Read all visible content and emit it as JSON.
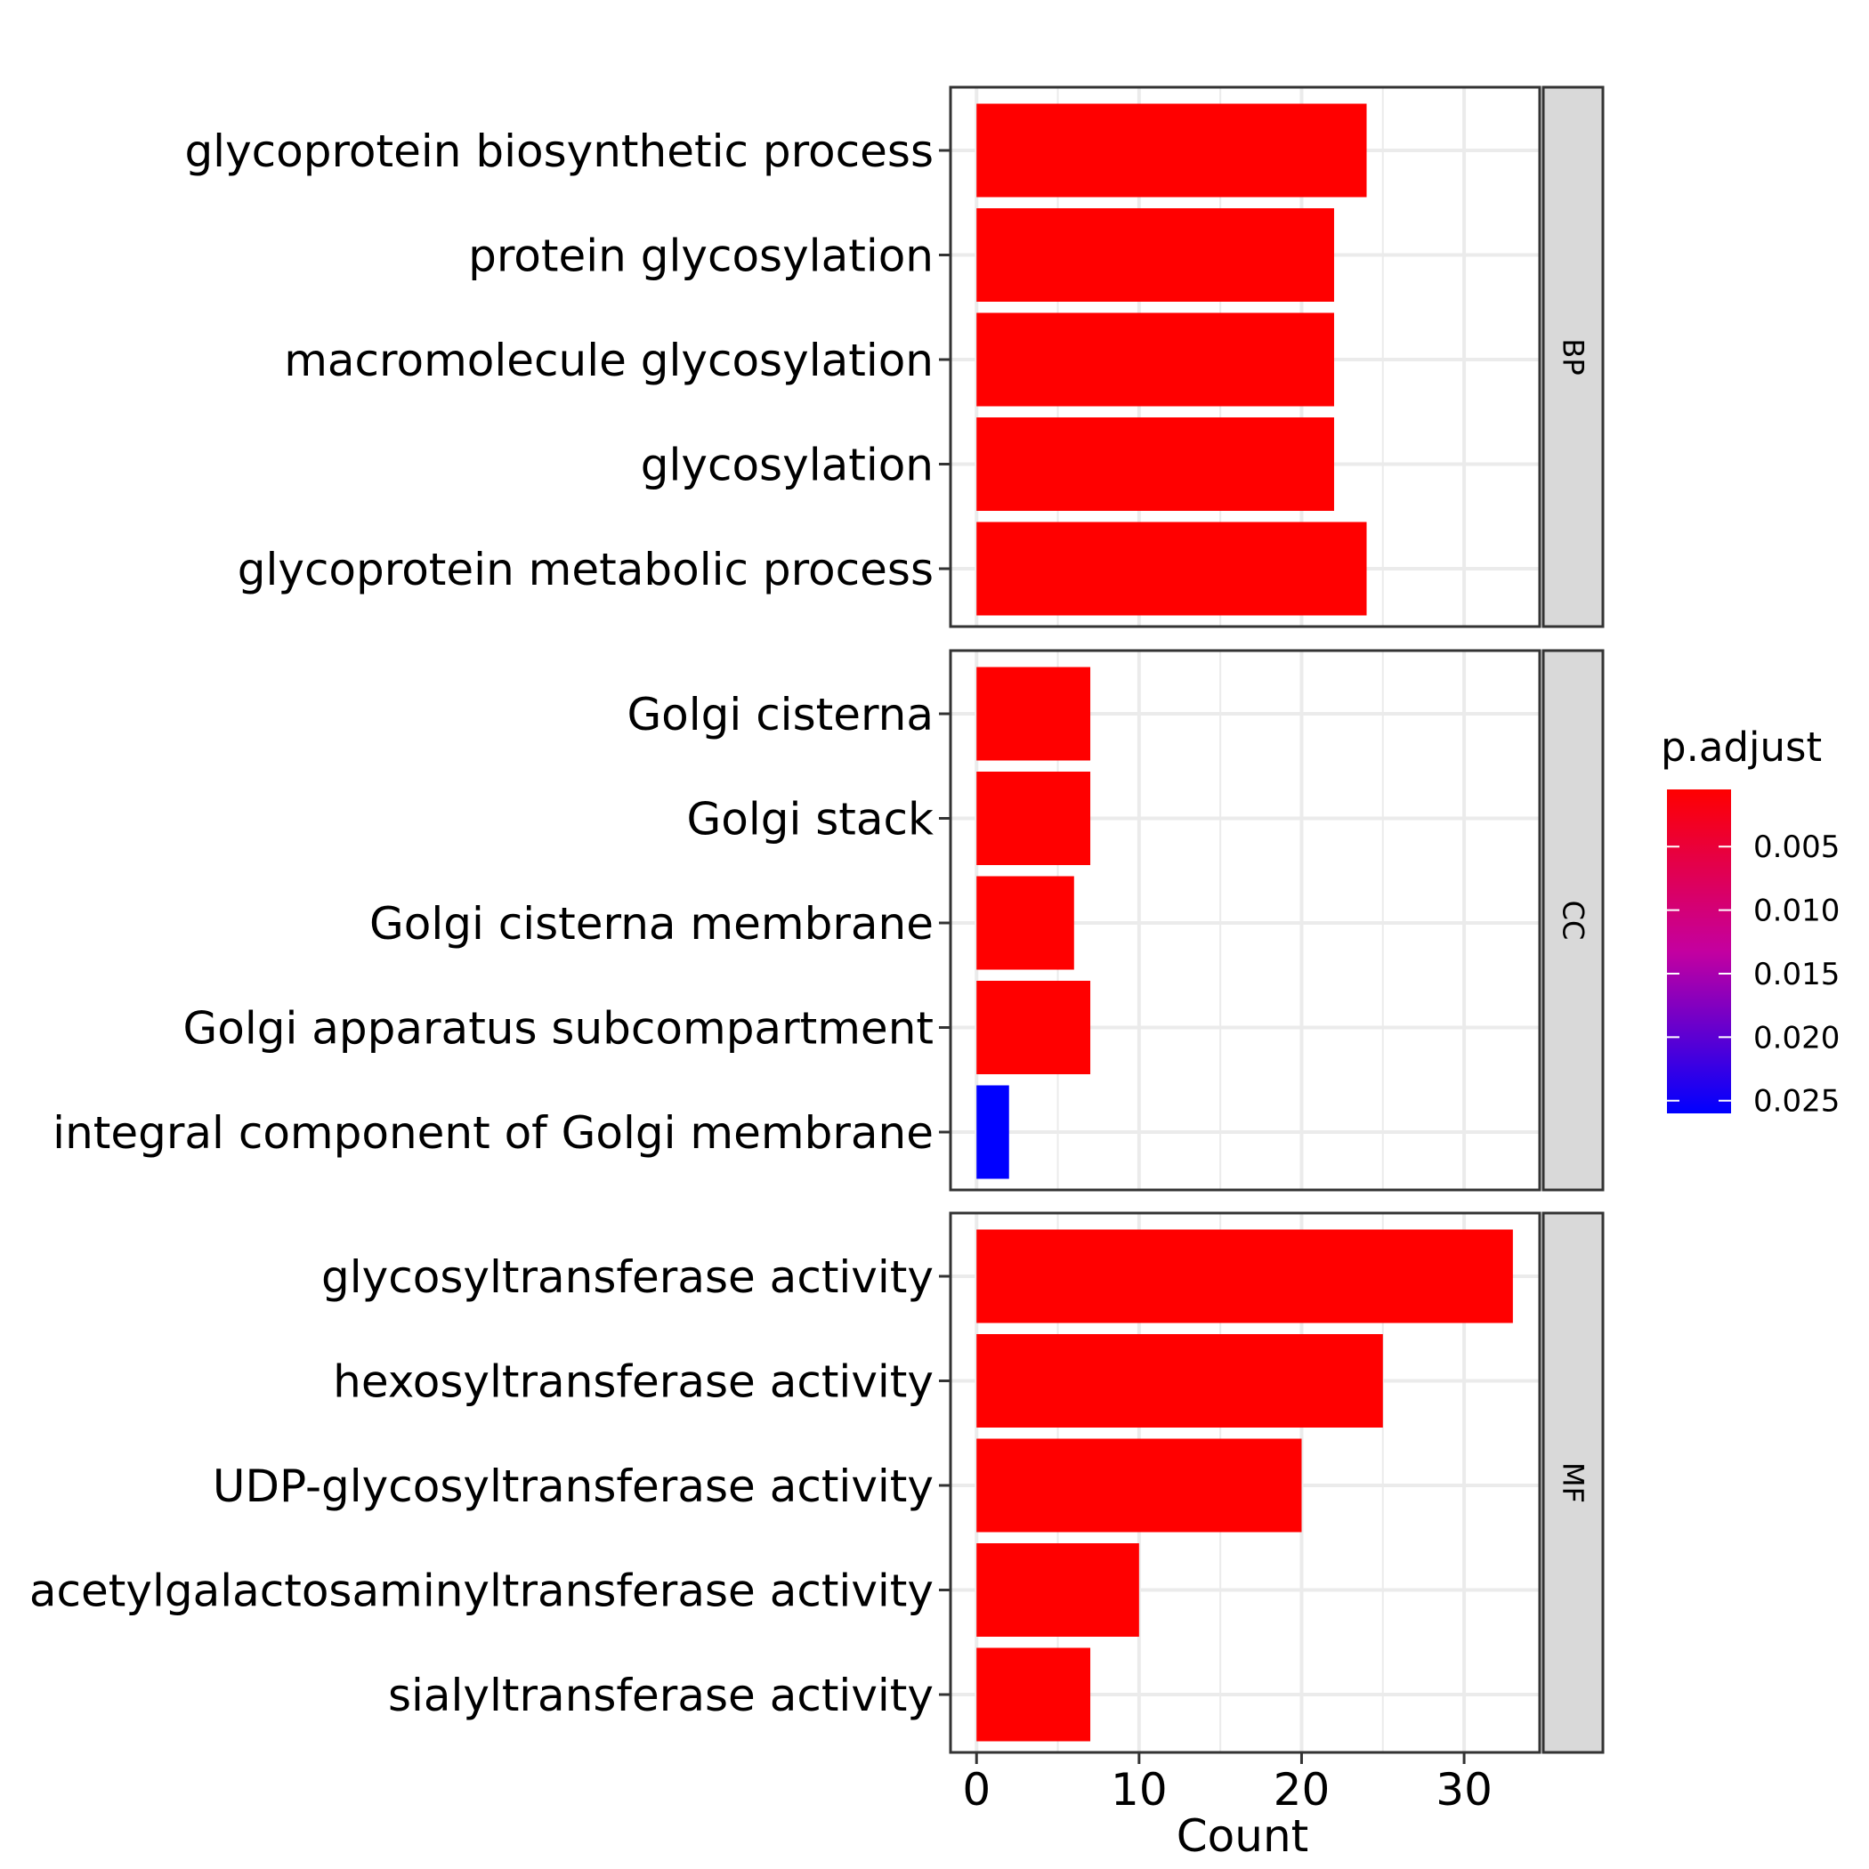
{
  "chart_data": {
    "type": "bar",
    "orientation": "horizontal",
    "facets": [
      {
        "label": "BP",
        "categories": [
          "glycoprotein biosynthetic process",
          "protein glycosylation",
          "macromolecule glycosylation",
          "glycosylation",
          "glycoprotein metabolic process"
        ],
        "values": [
          24,
          22,
          22,
          22,
          24
        ],
        "p_adjust": [
          0.0005,
          0.0005,
          0.0005,
          0.0005,
          0.0005
        ]
      },
      {
        "label": "CC",
        "categories": [
          "Golgi cisterna",
          "Golgi stack",
          "Golgi cisterna membrane",
          "Golgi apparatus subcompartment",
          "integral component of Golgi membrane"
        ],
        "values": [
          7,
          7,
          6,
          7,
          2
        ],
        "p_adjust": [
          0.0005,
          0.0005,
          0.0005,
          0.0005,
          0.026
        ]
      },
      {
        "label": "MF",
        "categories": [
          "glycosyltransferase activity",
          "hexosyltransferase activity",
          "UDP-glycosyltransferase activity",
          "acetylgalactosaminyltransferase activity",
          "sialyltransferase activity"
        ],
        "values": [
          33,
          25,
          20,
          10,
          7
        ],
        "p_adjust": [
          0.0005,
          0.0005,
          0.0005,
          0.0005,
          0.0005
        ]
      }
    ],
    "xlabel": "Count",
    "xlim": [
      -1.6,
      34.65
    ],
    "x_ticks": [
      "0",
      "10",
      "20",
      "30"
    ],
    "grid": true,
    "legend": {
      "title": "p.adjust",
      "position": "right",
      "range": [
        0.0005,
        0.026
      ],
      "ticks": [
        "0.005",
        "0.010",
        "0.015",
        "0.020",
        "0.025"
      ],
      "colors": {
        "low": "#ff0000",
        "high": "#0000ff"
      }
    },
    "colors": {
      "panel_border": "#333333",
      "strip_fill": "#d9d9d9",
      "grid_major": "#ebebeb"
    }
  }
}
